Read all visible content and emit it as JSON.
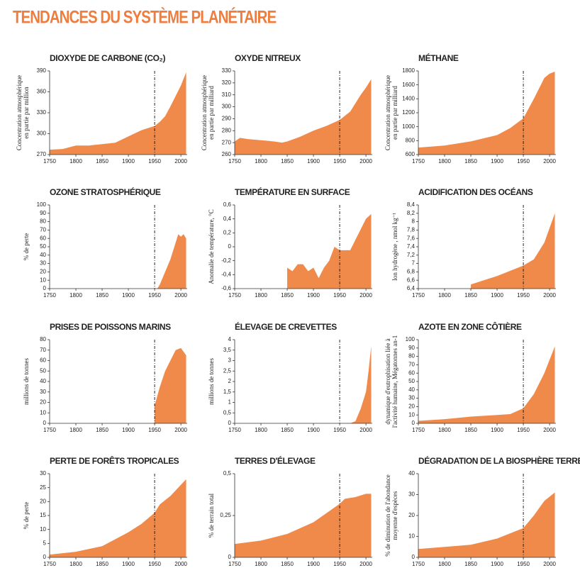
{
  "title": "TENDANCES DU SYSTÈME PLANÉTAIRE",
  "chart_data": [
    {
      "type": "area",
      "title": "DIOXYDE DE CARBONE (CO₂)",
      "ylabel": [
        "Concentration atmosphérique",
        "en partie par million"
      ],
      "color": "#f08a4b",
      "ref_x": 1950,
      "x": [
        1750,
        1775,
        1800,
        1825,
        1850,
        1875,
        1900,
        1925,
        1950,
        1960,
        1970,
        1980,
        1990,
        2000,
        2010
      ],
      "values": [
        277,
        278,
        283,
        283,
        285,
        287,
        296,
        305,
        311,
        317,
        325,
        339,
        354,
        369,
        388
      ],
      "xlim": [
        1750,
        2012
      ],
      "xticks": [
        1750,
        1800,
        1850,
        1900,
        1950,
        2000
      ],
      "ylim": [
        270,
        390
      ],
      "yticks": [
        270,
        300,
        330,
        360,
        390
      ]
    },
    {
      "type": "area",
      "title": "OXYDE NITREUX",
      "ylabel": [
        "Concentration atmosphérique",
        "en partie par milliard"
      ],
      "color": "#f08a4b",
      "ref_x": 1950,
      "x": [
        1750,
        1760,
        1775,
        1800,
        1825,
        1840,
        1850,
        1875,
        1900,
        1925,
        1950,
        1970,
        1990,
        2000,
        2010
      ],
      "values": [
        271,
        274,
        273,
        272,
        271,
        270,
        271,
        275,
        280,
        284,
        289,
        296,
        310,
        316,
        323
      ],
      "xlim": [
        1750,
        2012
      ],
      "xticks": [
        1750,
        1800,
        1850,
        1900,
        1950,
        2000
      ],
      "ylim": [
        260,
        330
      ],
      "yticks": [
        260,
        270,
        280,
        290,
        300,
        310,
        320,
        330
      ]
    },
    {
      "type": "area",
      "title": "MÉTHANE",
      "ylabel": [
        "Concentration atmosphérique",
        "en partie par milliard"
      ],
      "color": "#f08a4b",
      "ref_x": 1950,
      "x": [
        1750,
        1800,
        1850,
        1900,
        1925,
        1950,
        1970,
        1990,
        2000,
        2010
      ],
      "values": [
        700,
        730,
        790,
        880,
        980,
        1120,
        1400,
        1700,
        1760,
        1790
      ],
      "xlim": [
        1750,
        2012
      ],
      "xticks": [
        1750,
        1800,
        1850,
        1900,
        1950,
        2000
      ],
      "ylim": [
        600,
        1800
      ],
      "yticks": [
        600,
        800,
        1000,
        1200,
        1400,
        1600,
        1800
      ]
    },
    {
      "type": "area",
      "title": "OZONE STRATOSPHÉRIQUE",
      "ylabel": [
        "% de perte"
      ],
      "color": "#f08a4b",
      "ref_x": 1950,
      "x": [
        1955,
        1960,
        1970,
        1980,
        1990,
        1995,
        2000,
        2005,
        2010
      ],
      "values": [
        0,
        5,
        20,
        35,
        55,
        65,
        62,
        65,
        60
      ],
      "xlim": [
        1750,
        2012
      ],
      "xticks": [
        1750,
        1800,
        1850,
        1900,
        1950,
        2000
      ],
      "ylim": [
        0,
        100
      ],
      "yticks": [
        0,
        10,
        20,
        30,
        40,
        50,
        60,
        70,
        80,
        90,
        100
      ]
    },
    {
      "type": "area",
      "title": "TEMPÉRATURE EN SURFACE",
      "ylabel": [
        "Anomalie de température, °C"
      ],
      "color": "#f08a4b",
      "ref_x": 1950,
      "x": [
        1850,
        1860,
        1870,
        1880,
        1890,
        1900,
        1910,
        1920,
        1930,
        1940,
        1950,
        1960,
        1970,
        1980,
        1990,
        2000,
        2010
      ],
      "values": [
        -0.3,
        -0.35,
        -0.25,
        -0.25,
        -0.35,
        -0.3,
        -0.45,
        -0.3,
        -0.2,
        0.0,
        -0.05,
        -0.05,
        -0.05,
        0.1,
        0.25,
        0.4,
        0.47
      ],
      "xlim": [
        1750,
        2012
      ],
      "xticks": [
        1750,
        1800,
        1850,
        1900,
        1950,
        2000
      ],
      "ylim": [
        -0.6,
        0.6
      ],
      "yticks": [
        {
          "value": -0.6,
          "label": "-0,6"
        },
        {
          "value": -0.4,
          "label": "-0,4"
        },
        {
          "value": -0.2,
          "label": "-0,2"
        },
        0,
        {
          "value": 0.2,
          "label": "0,2"
        },
        {
          "value": 0.4,
          "label": "0,4"
        },
        {
          "value": 0.6,
          "label": "0,6"
        }
      ]
    },
    {
      "type": "area",
      "title": "ACIDIFICATION DES OCÉANS",
      "ylabel": [
        "Ion hydrogène , nmol kg⁻¹"
      ],
      "color": "#f08a4b",
      "ref_x": 1950,
      "x": [
        1850,
        1900,
        1950,
        1970,
        1990,
        2010
      ],
      "values": [
        6.5,
        6.7,
        6.95,
        7.1,
        7.5,
        8.2
      ],
      "xlim": [
        1750,
        2012
      ],
      "xticks": [
        1750,
        1800,
        1850,
        1900,
        1950,
        2000
      ],
      "ylim": [
        6.4,
        8.4
      ],
      "yticks": [
        {
          "value": 6.4,
          "label": "6,4"
        },
        {
          "value": 6.6,
          "label": "6,6"
        },
        {
          "value": 6.8,
          "label": "6,8"
        },
        7,
        {
          "value": 7.2,
          "label": "7,2"
        },
        {
          "value": 7.4,
          "label": "7,4"
        },
        {
          "value": 7.6,
          "label": "7,6"
        },
        {
          "value": 7.8,
          "label": "7,8"
        },
        8,
        {
          "value": 8.2,
          "label": "8,2"
        },
        {
          "value": 8.4,
          "label": "8,4"
        }
      ]
    },
    {
      "type": "area",
      "title": "PRISES DE POISSONS MARINS",
      "ylabel": [
        "millions de tonnes"
      ],
      "color": "#f08a4b",
      "ref_x": 1950,
      "x": [
        1950,
        1960,
        1970,
        1980,
        1990,
        2000,
        2010
      ],
      "values": [
        17,
        35,
        50,
        60,
        70,
        72,
        65
      ],
      "xlim": [
        1750,
        2012
      ],
      "xticks": [
        1750,
        1800,
        1850,
        1900,
        1950,
        2000
      ],
      "ylim": [
        0,
        80
      ],
      "yticks": [
        0,
        10,
        20,
        30,
        40,
        50,
        60,
        70,
        80
      ]
    },
    {
      "type": "area",
      "title": "ÉLEVAGE DE CREVETTES",
      "ylabel": [
        "millions de tonnes"
      ],
      "color": "#f08a4b",
      "ref_x": 1950,
      "x": [
        1950,
        1970,
        1980,
        1990,
        2000,
        2005,
        2010
      ],
      "values": [
        0,
        0,
        0.1,
        0.7,
        1.5,
        2.5,
        3.7
      ],
      "xlim": [
        1750,
        2012
      ],
      "xticks": [
        1750,
        1800,
        1850,
        1900,
        1950,
        2000
      ],
      "ylim": [
        0,
        4
      ],
      "yticks": [
        0,
        {
          "value": 0.5,
          "label": "0,5"
        },
        1,
        {
          "value": 1.5,
          "label": "1,5"
        },
        2,
        {
          "value": 2.5,
          "label": "2,5"
        },
        3,
        {
          "value": 3.5,
          "label": "3,5"
        },
        4
      ]
    },
    {
      "type": "area",
      "title": "AZOTE EN ZONE CÔTIÈRE",
      "ylabel": [
        "dynamique d'eutrophisation liée à",
        "l'activité humaine, Mégatonnes an-1"
      ],
      "color": "#f08a4b",
      "ref_x": 1950,
      "x": [
        1750,
        1800,
        1850,
        1900,
        1925,
        1950,
        1970,
        1990,
        2010
      ],
      "values": [
        3,
        5,
        8,
        10,
        11,
        18,
        35,
        60,
        92
      ],
      "xlim": [
        1750,
        2012
      ],
      "xticks": [
        1750,
        1800,
        1850,
        1900,
        1950,
        2000
      ],
      "ylim": [
        0,
        100
      ],
      "yticks": [
        0,
        10,
        20,
        30,
        40,
        50,
        60,
        70,
        80,
        90,
        100
      ]
    },
    {
      "type": "area",
      "title": "PERTE DE FORÊTS TROPICALES",
      "ylabel": [
        "% de perte"
      ],
      "color": "#f08a4b",
      "ref_x": 1950,
      "x": [
        1750,
        1800,
        1850,
        1900,
        1925,
        1950,
        1960,
        1980,
        2000,
        2010
      ],
      "values": [
        1,
        2,
        4,
        9,
        12,
        16,
        19,
        22,
        26,
        28
      ],
      "xlim": [
        1750,
        2012
      ],
      "xticks": [
        1750,
        1800,
        1850,
        1900,
        1950,
        2000
      ],
      "ylim": [
        0,
        30
      ],
      "yticks": [
        0,
        5,
        10,
        15,
        20,
        25,
        30
      ]
    },
    {
      "type": "area",
      "title": "TERRES D'ÉLEVAGE",
      "ylabel": [
        "% de terrain total"
      ],
      "color": "#f08a4b",
      "ref_x": 1950,
      "x": [
        1750,
        1800,
        1850,
        1900,
        1950,
        1960,
        1980,
        2000,
        2010
      ],
      "values": [
        0.08,
        0.1,
        0.14,
        0.21,
        0.32,
        0.35,
        0.36,
        0.38,
        0.38
      ],
      "xlim": [
        1750,
        2012
      ],
      "xticks": [
        1750,
        1800,
        1850,
        1900,
        1950,
        2000
      ],
      "ylim": [
        0,
        0.5
      ],
      "yticks": [
        0,
        {
          "value": 0.25,
          "label": "0,25"
        },
        {
          "value": 0.5,
          "label": "0,5"
        }
      ]
    },
    {
      "type": "area",
      "title": "DÉGRADATION DE LA BIOSPHÈRE TERRESTRE",
      "ylabel": [
        "% de diminution de l'abondance",
        "moyenne d'espèces"
      ],
      "color": "#f08a4b",
      "ref_x": 1950,
      "x": [
        1750,
        1800,
        1850,
        1900,
        1950,
        1970,
        1990,
        2010
      ],
      "values": [
        4,
        5,
        6,
        9,
        14,
        20,
        27,
        31
      ],
      "xlim": [
        1750,
        2012
      ],
      "xticks": [
        1750,
        1800,
        1850,
        1900,
        1950,
        2000
      ],
      "ylim": [
        0,
        40
      ],
      "yticks": [
        0,
        10,
        20,
        30,
        40
      ]
    }
  ]
}
